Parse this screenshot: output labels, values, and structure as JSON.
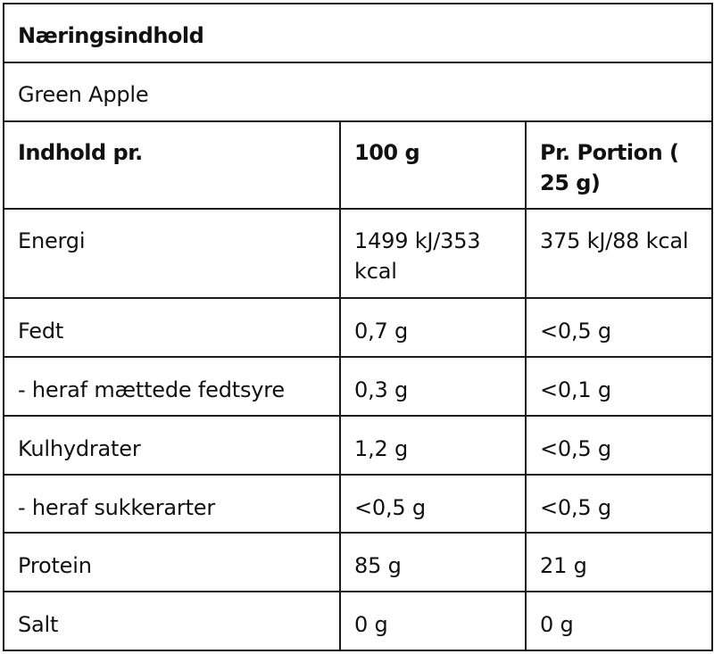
{
  "table": {
    "title": "Næringsindhold",
    "subtitle": "Green Apple",
    "headers": [
      "Indhold pr.",
      "100 g",
      "Pr. Portion ( 25 g)"
    ],
    "rows": [
      [
        "Energi",
        "1499 kJ/353 kcal",
        "375 kJ/88 kcal"
      ],
      [
        "Fedt",
        "0,7 g",
        "<0,5 g"
      ],
      [
        "- heraf mættede fedtsyre",
        "0,3 g",
        "<0,1 g"
      ],
      [
        "Kulhydrater",
        "1,2 g",
        "<0,5 g"
      ],
      [
        "- heraf sukkerarter",
        "<0,5 g",
        "<0,5 g"
      ],
      [
        "Protein",
        "85 g",
        "21 g"
      ],
      [
        "Salt",
        "0 g",
        "0 g"
      ]
    ]
  }
}
